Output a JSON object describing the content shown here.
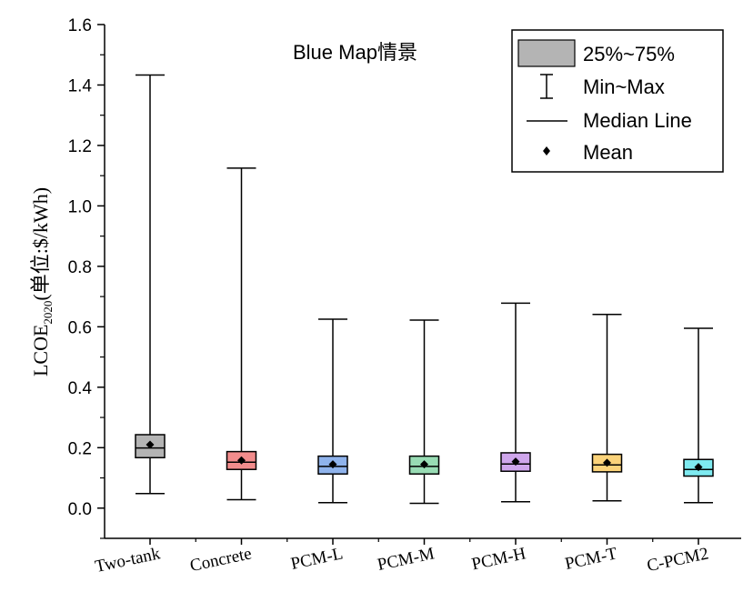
{
  "chart_data": {
    "type": "box",
    "title": "Blue Map情景",
    "ylabel": {
      "main": "LCOE",
      "subscript": "2020",
      "unit": "(单位:$/kWh)"
    },
    "ylim": [
      -0.1,
      1.6
    ],
    "yticks": [
      "0.0",
      "0.2",
      "0.4",
      "0.6",
      "0.8",
      "1.0",
      "1.2",
      "1.4",
      "1.6"
    ],
    "grid": false,
    "legend_position": "top-right",
    "legend": {
      "box": "25%~75%",
      "whisker": "Min~Max",
      "median": "Median Line",
      "mean": "Mean"
    },
    "categories": [
      "Two-tank",
      "Concrete",
      "PCM-L",
      "PCM-M",
      "PCM-H",
      "PCM-T",
      "C-PCM2"
    ],
    "series": [
      {
        "min": 0.048,
        "q1": 0.167,
        "median": 0.199,
        "q3": 0.243,
        "max": 1.433,
        "mean": 0.21,
        "color": "#b4b4b4"
      },
      {
        "min": 0.028,
        "q1": 0.128,
        "median": 0.152,
        "q3": 0.187,
        "max": 1.125,
        "mean": 0.158,
        "color": "#f28c8c"
      },
      {
        "min": 0.018,
        "q1": 0.113,
        "median": 0.138,
        "q3": 0.172,
        "max": 0.625,
        "mean": 0.145,
        "color": "#8fb3ec"
      },
      {
        "min": 0.016,
        "q1": 0.113,
        "median": 0.138,
        "q3": 0.172,
        "max": 0.622,
        "mean": 0.145,
        "color": "#98dcb4"
      },
      {
        "min": 0.021,
        "q1": 0.122,
        "median": 0.146,
        "q3": 0.183,
        "max": 0.678,
        "mean": 0.154,
        "color": "#cfa6ec"
      },
      {
        "min": 0.024,
        "q1": 0.12,
        "median": 0.143,
        "q3": 0.178,
        "max": 0.641,
        "mean": 0.15,
        "color": "#fbd37a"
      },
      {
        "min": 0.018,
        "q1": 0.106,
        "median": 0.128,
        "q3": 0.161,
        "max": 0.595,
        "mean": 0.136,
        "color": "#7eeaf0"
      }
    ]
  }
}
